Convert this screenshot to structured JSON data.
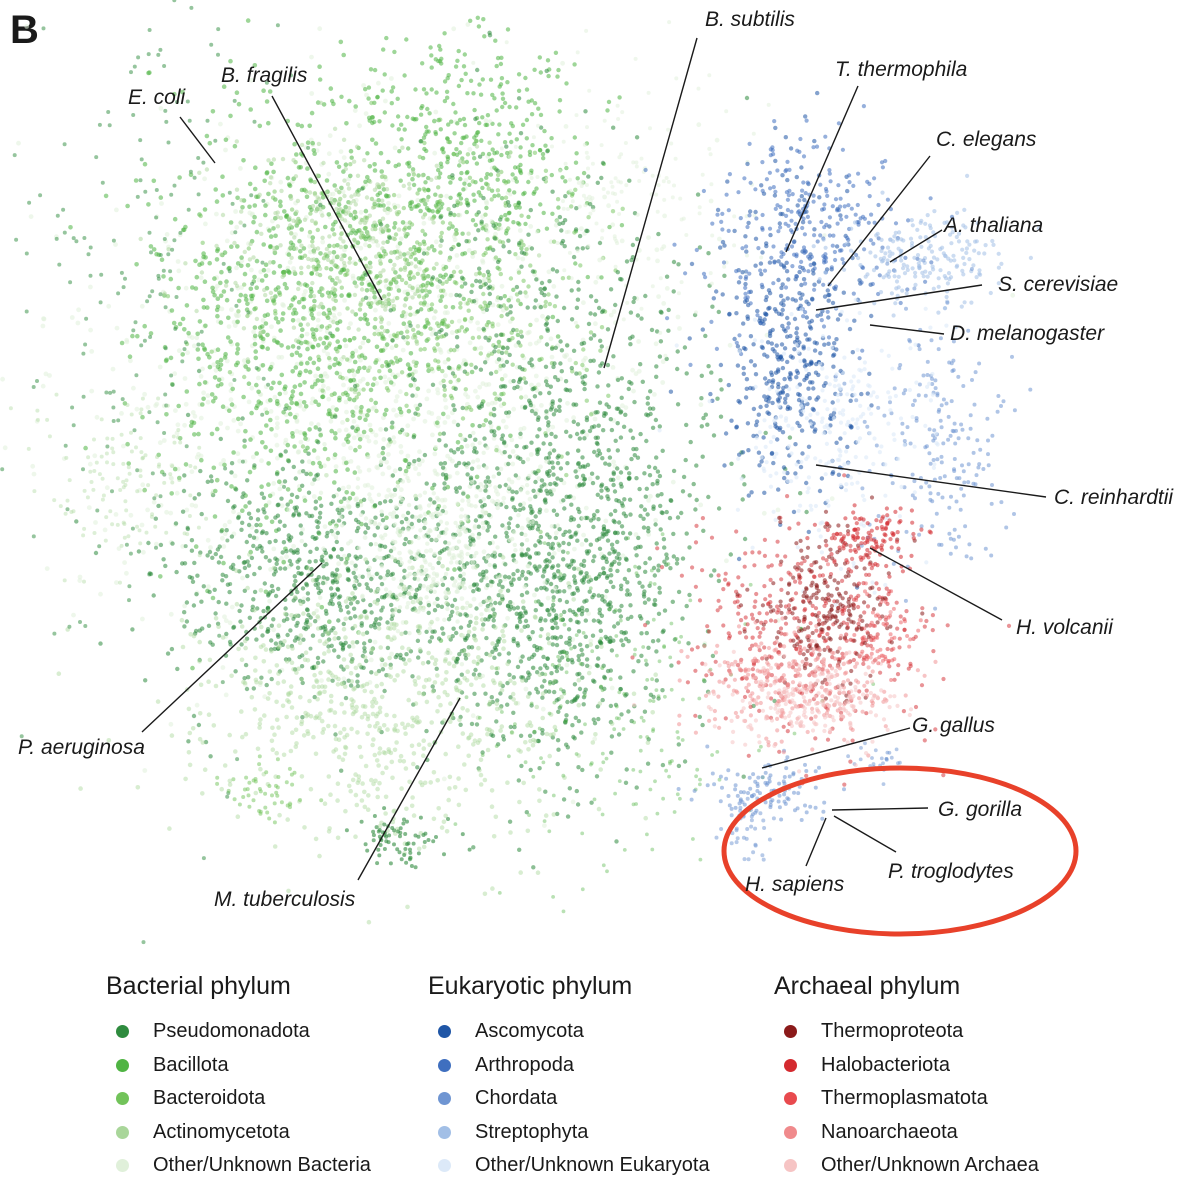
{
  "panel_label": "B",
  "chart_data": {
    "type": "scatter",
    "title": "",
    "xlabel": "",
    "ylabel": "",
    "grid": false,
    "legend_position": "bottom",
    "colors": {
      "Pseudomonadota": "#2e8b3e",
      "Bacillota": "#4fb443",
      "Bacteroidota": "#72c35a",
      "Actinomycetota": "#a9d69a",
      "Other/Unknown Bacteria": "#e0f0da",
      "Ascomycota": "#1f56a6",
      "Arthropoda": "#3f6fbf",
      "Chordata": "#6f95d2",
      "Streptophyta": "#a2bfe6",
      "Other/Unknown Eukaryota": "#dce9f8",
      "Thermoproteota": "#8b1a1a",
      "Halobacteriota": "#d42a2f",
      "Thermoplasmatota": "#e84a4e",
      "Nanoarchaeota": "#f08a8c",
      "Other/Unknown Archaea": "#f6c4c4",
      "highlight_ring": "#e8412a"
    },
    "legend_groups": [
      {
        "title": "Bacterial phylum",
        "items": [
          "Pseudomonadota",
          "Bacillota",
          "Bacteroidota",
          "Actinomycetota",
          "Other/Unknown Bacteria"
        ]
      },
      {
        "title": "Eukaryotic phylum",
        "items": [
          "Ascomycota",
          "Arthropoda",
          "Chordata",
          "Streptophyta",
          "Other/Unknown Eukaryota"
        ]
      },
      {
        "title": "Archaeal phylum",
        "items": [
          "Thermoproteota",
          "Halobacteriota",
          "Thermoplasmatota",
          "Nanoarchaeota",
          "Other/Unknown Archaea"
        ]
      }
    ],
    "annotations": [
      "B. subtilis",
      "E. coli",
      "B. fragilis",
      "T. thermophila",
      "C. elegans",
      "A. thaliana",
      "S. cerevisiae",
      "D. melanogaster",
      "C. reinhardtii",
      "H. volcanii",
      "P. aeruginosa",
      "M. tuberculosis",
      "G. gallus",
      "G. gorilla",
      "P. troglodytes",
      "H. sapiens"
    ]
  }
}
